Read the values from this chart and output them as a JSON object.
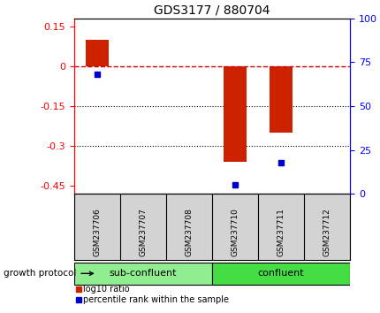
{
  "title": "GDS3177 / 880704",
  "samples": [
    "GSM237706",
    "GSM237707",
    "GSM237708",
    "GSM237710",
    "GSM237711",
    "GSM237712"
  ],
  "log10_ratio": [
    0.1,
    0.0,
    0.0,
    -0.36,
    -0.25,
    0.0
  ],
  "percentile_rank": [
    68,
    0,
    0,
    5,
    18,
    0
  ],
  "bar_color": "#cc2200",
  "dot_color": "#0000cc",
  "ylim_left": [
    -0.48,
    0.18
  ],
  "ylim_right": [
    0,
    100
  ],
  "yticks_left": [
    -0.45,
    -0.3,
    -0.15,
    0.0,
    0.15
  ],
  "yticks_right": [
    0,
    25,
    50,
    75,
    100
  ],
  "groups": [
    {
      "label": "sub-confluent",
      "start": 0,
      "end": 3,
      "color": "#90ee90"
    },
    {
      "label": "confluent",
      "start": 3,
      "end": 6,
      "color": "#44dd44"
    }
  ],
  "group_label": "growth protocol",
  "legend_items": [
    {
      "label": "log10 ratio",
      "color": "#cc2200"
    },
    {
      "label": "percentile rank within the sample",
      "color": "#0000cc"
    }
  ],
  "hline_color": "#cc0000",
  "dotline_color": "#000000",
  "background_color": "#ffffff",
  "plot_bg": "#ffffff",
  "bar_width": 0.5
}
